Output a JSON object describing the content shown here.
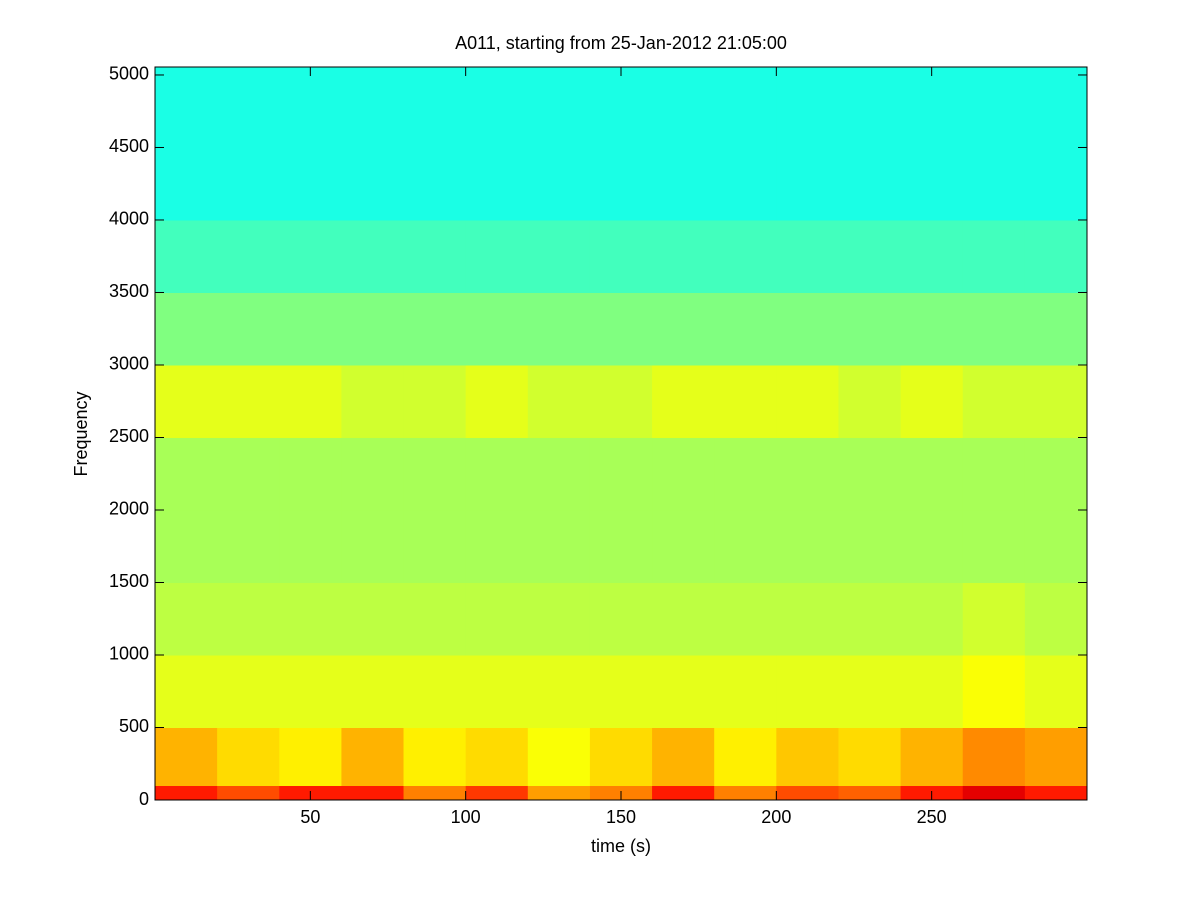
{
  "chart_data": {
    "type": "heatmap",
    "title": "A011, starting from 25-Jan-2012 21:05:00",
    "xlabel": "time (s)",
    "ylabel": "Frequency",
    "colormap": "jet",
    "clim": [
      0,
      1
    ],
    "xbins": [
      0,
      20,
      40,
      60,
      80,
      100,
      120,
      140,
      160,
      180,
      200,
      220,
      240,
      260,
      280,
      300
    ],
    "ybins": [
      0,
      100,
      500,
      1000,
      1500,
      2000,
      2500,
      3000,
      3500,
      4000,
      5055
    ],
    "values": [
      [
        0.85,
        0.8,
        0.85,
        0.85,
        0.75,
        0.82,
        0.72,
        0.75,
        0.85,
        0.75,
        0.8,
        0.78,
        0.85,
        0.9,
        0.85
      ],
      [
        0.7,
        0.66,
        0.64,
        0.7,
        0.64,
        0.66,
        0.62,
        0.66,
        0.7,
        0.64,
        0.68,
        0.66,
        0.7,
        0.74,
        0.72
      ],
      [
        0.6,
        0.6,
        0.6,
        0.6,
        0.6,
        0.6,
        0.6,
        0.6,
        0.6,
        0.6,
        0.6,
        0.6,
        0.6,
        0.62,
        0.6
      ],
      [
        0.56,
        0.56,
        0.56,
        0.56,
        0.56,
        0.56,
        0.56,
        0.56,
        0.56,
        0.56,
        0.56,
        0.56,
        0.56,
        0.58,
        0.56
      ],
      [
        0.54,
        0.54,
        0.54,
        0.54,
        0.54,
        0.54,
        0.54,
        0.54,
        0.54,
        0.54,
        0.54,
        0.54,
        0.54,
        0.54,
        0.54
      ],
      [
        0.54,
        0.54,
        0.54,
        0.54,
        0.54,
        0.54,
        0.54,
        0.54,
        0.54,
        0.54,
        0.54,
        0.54,
        0.54,
        0.54,
        0.54
      ],
      [
        0.6,
        0.6,
        0.6,
        0.58,
        0.58,
        0.6,
        0.58,
        0.58,
        0.6,
        0.6,
        0.6,
        0.58,
        0.6,
        0.58,
        0.58
      ],
      [
        0.5,
        0.5,
        0.5,
        0.5,
        0.5,
        0.5,
        0.5,
        0.5,
        0.5,
        0.5,
        0.5,
        0.5,
        0.5,
        0.5,
        0.5
      ],
      [
        0.44,
        0.44,
        0.44,
        0.44,
        0.44,
        0.44,
        0.44,
        0.44,
        0.44,
        0.44,
        0.44,
        0.44,
        0.44,
        0.44,
        0.44
      ],
      [
        0.4,
        0.4,
        0.4,
        0.4,
        0.4,
        0.4,
        0.4,
        0.4,
        0.4,
        0.4,
        0.4,
        0.4,
        0.4,
        0.4,
        0.4
      ]
    ],
    "xlim": [
      0,
      300
    ],
    "xticks": [
      50,
      100,
      150,
      200,
      250
    ],
    "ylim": [
      0,
      5055
    ],
    "yticks": [
      0,
      500,
      1000,
      1500,
      2000,
      2500,
      3000,
      3500,
      4000,
      4500,
      5000
    ]
  }
}
